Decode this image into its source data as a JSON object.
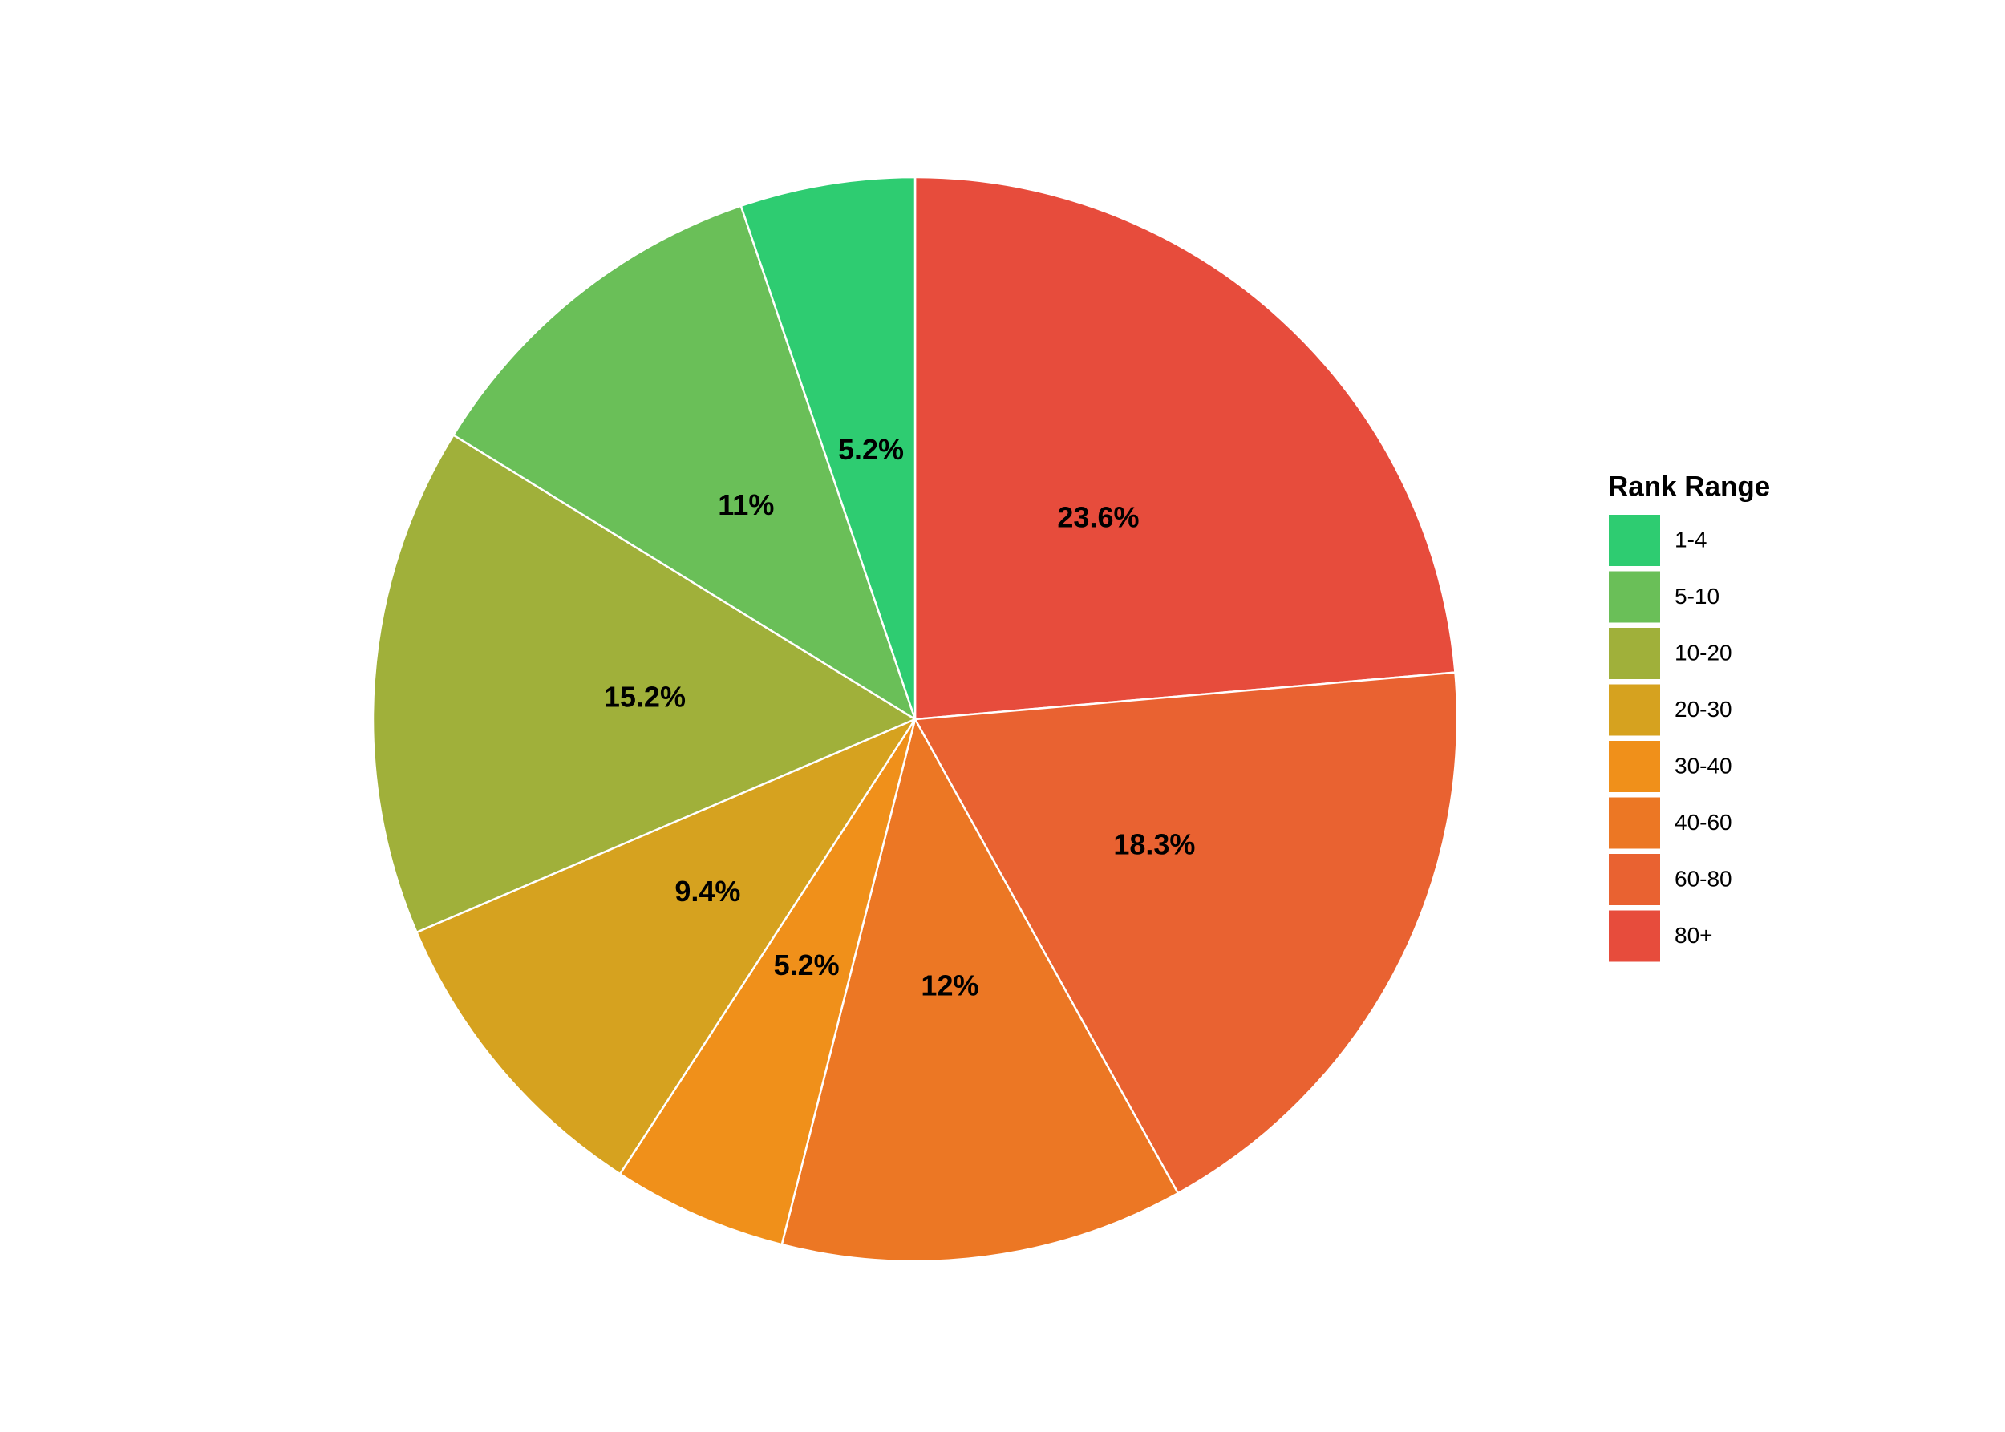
{
  "chart_data": {
    "type": "pie",
    "legend_title": "Rank Range",
    "categories": [
      "1-4",
      "5-10",
      "10-20",
      "20-30",
      "30-40",
      "40-60",
      "60-80",
      "80+"
    ],
    "values": [
      5.2,
      11,
      15.2,
      9.4,
      5.2,
      12,
      18.3,
      23.6
    ],
    "value_labels": [
      "5.2%",
      "11%",
      "15.2%",
      "9.4%",
      "5.2%",
      "12%",
      "18.3%",
      "23.6%"
    ],
    "colors": [
      "#2ecc71",
      "#6abf58",
      "#a0b03a",
      "#d6a21f",
      "#f0901a",
      "#ec7724",
      "#e96231",
      "#e74c3c"
    ],
    "legend_position": "right"
  }
}
